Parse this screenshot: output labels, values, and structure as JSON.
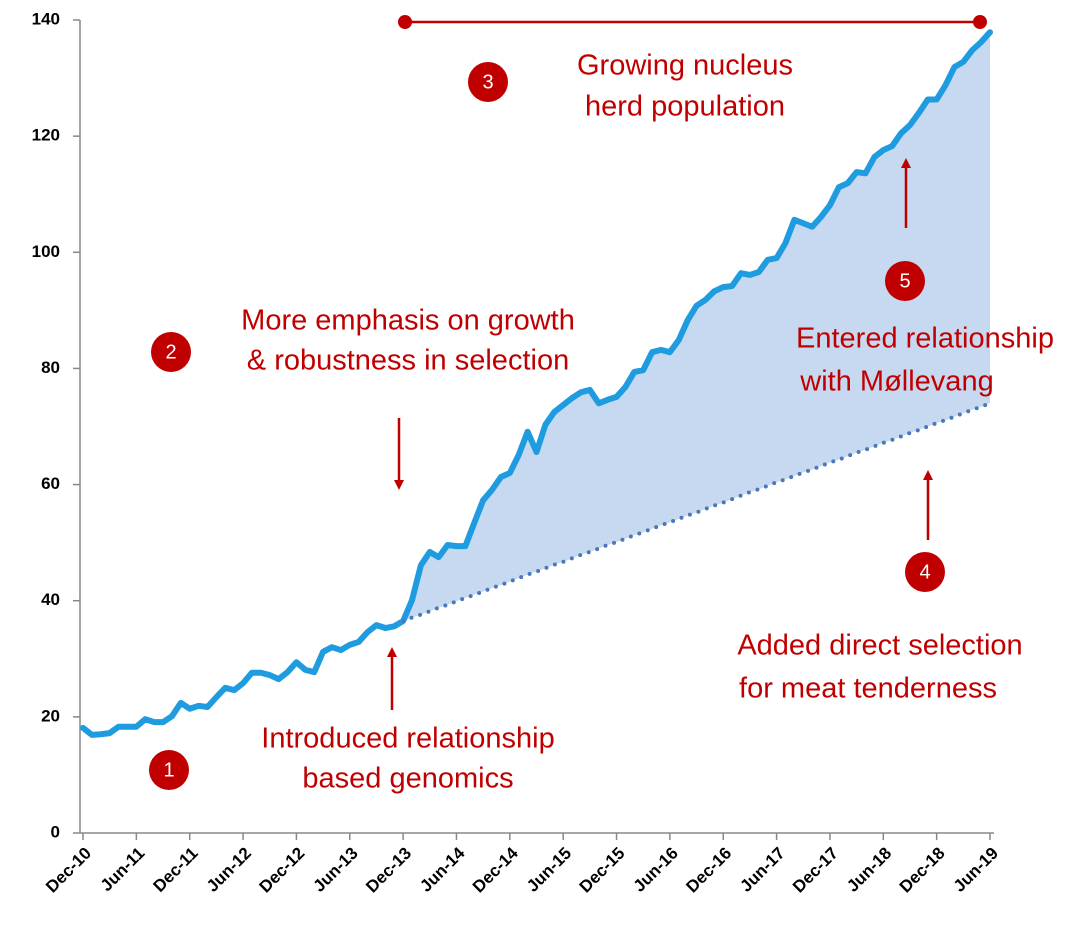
{
  "chart_data": {
    "type": "line",
    "categories": [
      "Dec-10",
      null,
      null,
      null,
      null,
      null,
      "Jun-11",
      null,
      null,
      null,
      null,
      null,
      "Dec-11",
      null,
      null,
      null,
      null,
      null,
      "Jun-12",
      null,
      null,
      null,
      null,
      null,
      "Dec-12",
      null,
      null,
      null,
      null,
      null,
      "Jun-13",
      null,
      null,
      null,
      null,
      null,
      "Dec-13",
      null,
      null,
      null,
      null,
      null,
      "Jun-14",
      null,
      null,
      null,
      null,
      null,
      "Dec-14",
      null,
      null,
      null,
      null,
      null,
      "Jun-15",
      null,
      null,
      null,
      null,
      null,
      "Dec-15",
      null,
      null,
      null,
      null,
      null,
      "Jun-16",
      null,
      null,
      null,
      null,
      null,
      "Dec-16",
      null,
      null,
      null,
      null,
      null,
      "Jun-17",
      null,
      null,
      null,
      null,
      null,
      "Dec-17",
      null,
      null,
      null,
      null,
      null,
      "Jun-18",
      null,
      null,
      null,
      null,
      null,
      "Dec-18",
      null,
      null,
      null,
      null,
      null,
      "Jun-19"
    ],
    "series": [
      {
        "color": "#1f9ce0",
        "values": [
          18.1,
          16.9,
          17,
          17.2,
          18.3,
          18.3,
          18.3,
          19.6,
          19.1,
          19.1,
          20.1,
          22.4,
          21.4,
          21.9,
          21.7,
          23.4,
          25,
          24.6,
          25.8,
          27.6,
          27.6,
          27.2,
          26.5,
          27.7,
          29.4,
          28.1,
          27.7,
          31.2,
          32,
          31.5,
          32.4,
          32.9,
          34.6,
          35.8,
          35.3,
          35.6,
          36.5,
          40.1,
          46.1,
          48.4,
          47.5,
          49.6,
          49.4,
          49.4,
          53.4,
          57.3,
          59.1,
          61.3,
          62,
          65.1,
          69.1,
          65.6,
          70.3,
          72.5,
          73.7,
          74.9,
          75.9,
          76.3,
          74,
          74.6,
          75.1,
          76.8,
          79.4,
          79.7,
          82.8,
          83.2,
          82.8,
          84.9,
          88.3,
          90.8,
          91.8,
          93.3,
          94,
          94.2,
          96.4,
          96.1,
          96.6,
          98.7,
          99,
          101.6,
          105.6,
          105,
          104.4,
          106.1,
          108.1,
          111.2,
          111.9,
          113.8,
          113.6,
          116.4,
          117.6,
          118.3,
          120.5,
          121.9,
          124,
          126.3,
          126.3,
          128.8,
          131.9,
          132.8,
          134.8,
          136.2,
          137.9
        ]
      },
      {
        "color": "#4a78b8",
        "style": "dotted",
        "values": [
          null,
          null,
          null,
          null,
          null,
          null,
          null,
          null,
          null,
          null,
          null,
          null,
          null,
          null,
          null,
          null,
          null,
          null,
          null,
          null,
          null,
          null,
          null,
          null,
          null,
          null,
          null,
          null,
          null,
          null,
          null,
          null,
          null,
          null,
          null,
          null,
          36.5,
          37.1,
          37.6,
          38.2,
          38.8,
          39.3,
          39.9,
          40.5,
          41.0,
          41.6,
          42.2,
          42.7,
          43.3,
          43.9,
          44.5,
          45.0,
          45.6,
          46.2,
          46.7,
          47.3,
          47.9,
          48.4,
          49.0,
          49.6,
          50.1,
          50.7,
          51.3,
          51.8,
          52.4,
          53.0,
          53.5,
          54.1,
          54.7,
          55.2,
          55.8,
          56.4,
          56.9,
          57.5,
          58.1,
          58.7,
          59.2,
          59.8,
          60.4,
          60.9,
          61.5,
          62.1,
          62.6,
          63.2,
          63.8,
          64.3,
          64.9,
          65.5,
          66.0,
          66.6,
          67.2,
          67.7,
          68.3,
          68.9,
          69.4,
          70.0,
          70.6,
          71.1,
          71.7,
          72.3,
          72.9,
          73.4,
          74.0
        ]
      }
    ],
    "fill_between": {
      "color": "#c6d9f0"
    },
    "ylim": [
      0,
      140
    ],
    "yticks": [
      0,
      20,
      40,
      60,
      80,
      100,
      120,
      140
    ],
    "annotations": [
      {
        "number": "1",
        "lines": [
          "Introduced relationship",
          "based genomics"
        ]
      },
      {
        "number": "2",
        "lines": [
          "More emphasis on growth",
          "& robustness in selection"
        ]
      },
      {
        "number": "3",
        "lines": [
          "Growing nucleus",
          "herd population"
        ]
      },
      {
        "number": "4",
        "lines": [
          "Added direct selection",
          "for meat tenderness"
        ]
      },
      {
        "number": "5",
        "lines": [
          "Entered relationship",
          "with Møllevang"
        ]
      }
    ],
    "annotation_color": "#c00000"
  }
}
